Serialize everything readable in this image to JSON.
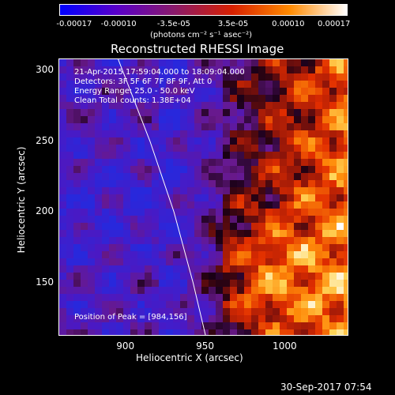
{
  "chart_data": {
    "type": "heatmap",
    "title": "Reconstructed RHESSI Image",
    "xlabel": "Heliocentric X (arcsec)",
    "ylabel": "Heliocentric Y (arcsec)",
    "xlim": [
      858,
      1040
    ],
    "ylim": [
      112,
      308
    ],
    "x_ticks": [
      900,
      950,
      1000
    ],
    "y_ticks": [
      150,
      200,
      250,
      300
    ],
    "x_tick_labels": [
      "900",
      "950",
      "1000"
    ],
    "y_tick_labels": [
      "150",
      "200",
      "250",
      "300"
    ],
    "colorbar": {
      "range": [
        -0.00017,
        0.00017
      ],
      "ticks": [
        -0.00017,
        -0.0001,
        -3.5e-05,
        3.5e-05,
        0.0001,
        0.00017
      ],
      "tick_labels": [
        "-0.00017",
        "-0.00010",
        "-3.5e-05",
        "3.5e-05",
        "0.00010",
        "0.00017"
      ],
      "unit_label": "(photons cm⁻² s⁻¹ asec⁻²)",
      "colors": [
        "#0000ff",
        "#5a00c8",
        "#8a1a6a",
        "#d82000",
        "#ff8a00",
        "#ffffff"
      ]
    },
    "annotations": [
      "21-Apr-2015 17:59:04.000 to 18:09:04.000",
      "Detectors: 3F 5F 6F 7F 8F 9F, Att 0",
      "Energy Range: 25.0 - 50.0 keV",
      "Clean    Total counts: 1.38E+04"
    ],
    "peak_label": "Position of Peak = [984,156]",
    "peak": [
      984,
      156
    ],
    "limb_points": [
      [
        895,
        308
      ],
      [
        915,
        250
      ],
      [
        930,
        200
      ],
      [
        942,
        150
      ],
      [
        950,
        112
      ]
    ],
    "grid": false
  },
  "timestamp": "30-Sep-2017 07:54"
}
